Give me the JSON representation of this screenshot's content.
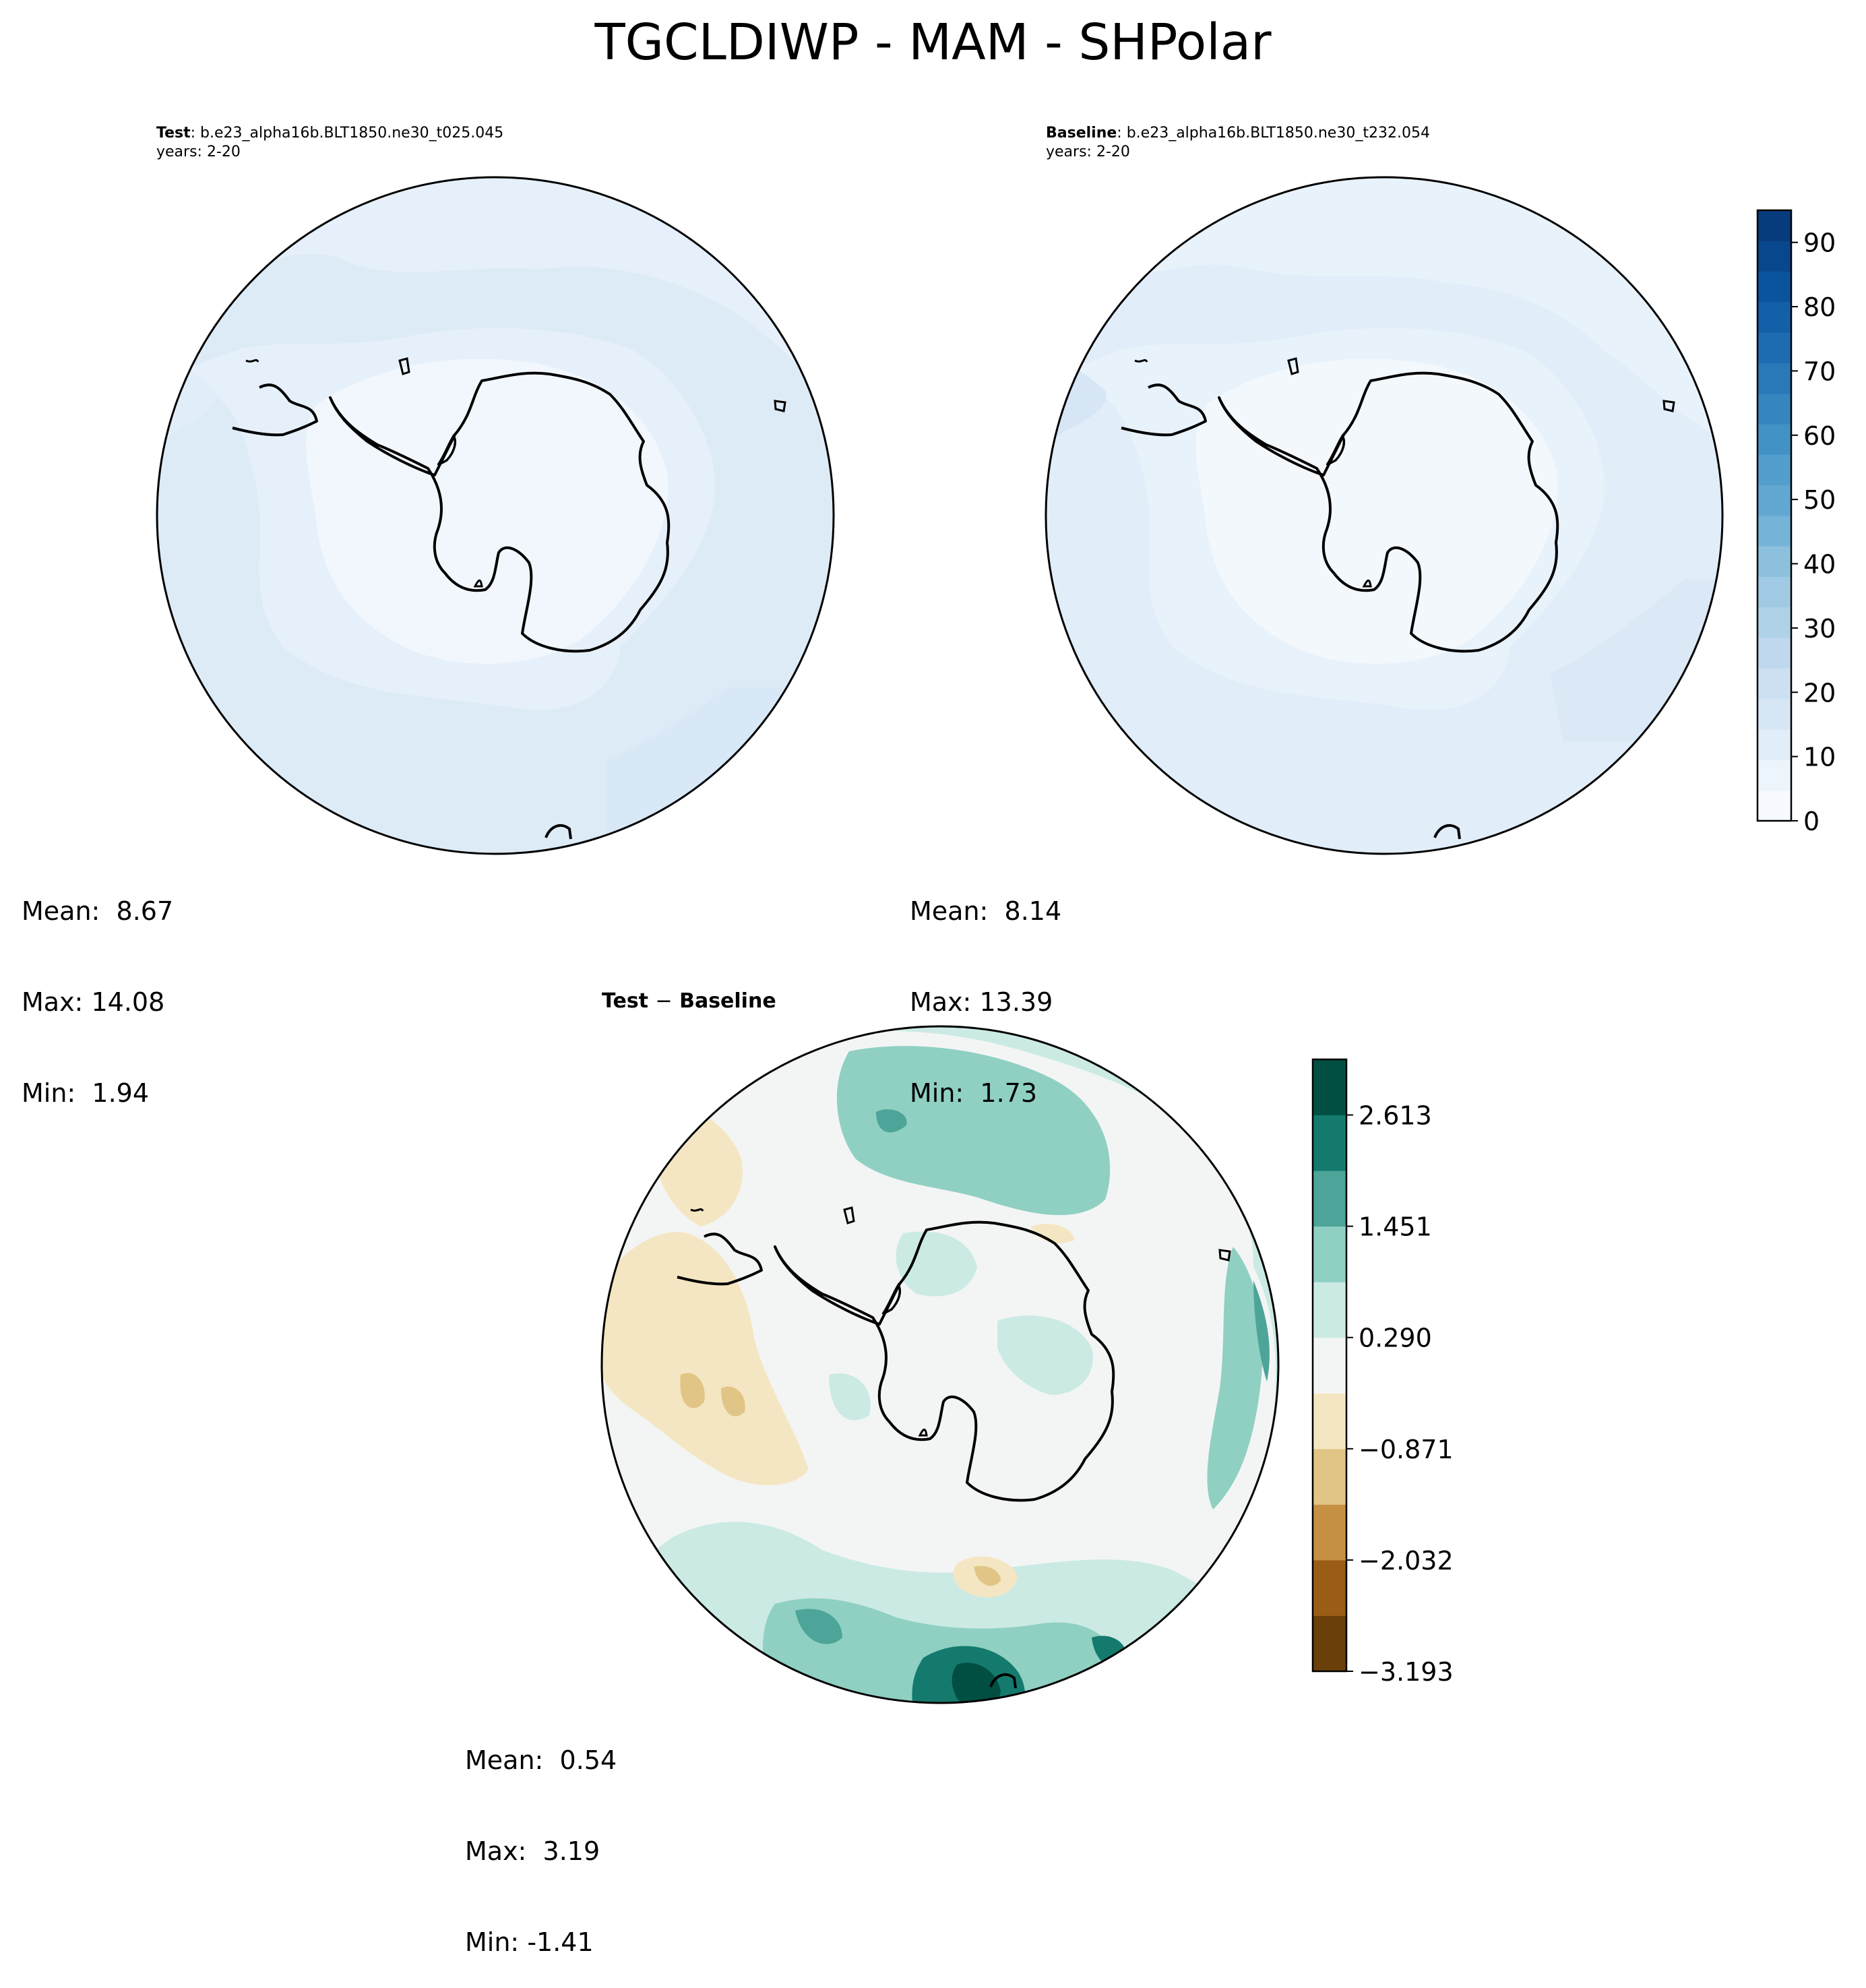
{
  "figure": {
    "title": "TGCLDIWP - MAM - SHPolar"
  },
  "panels": {
    "test": {
      "label": "Test",
      "case": ": b.e23_alpha16b.BLT1850.ne30_t025.045",
      "years": "years: 2-20",
      "stats": {
        "mean_label": "Mean:",
        "mean": "8.67",
        "max_label": "Max:",
        "max": "14.08",
        "min_label": "Min:",
        "min": "1.94"
      }
    },
    "baseline": {
      "label": "Baseline",
      "case": ": b.e23_alpha16b.BLT1850.ne30_t232.054",
      "years": "years: 2-20",
      "stats": {
        "mean_label": "Mean:",
        "mean": "8.14",
        "max_label": "Max:",
        "max": "13.39",
        "min_label": "Min:",
        "min": "1.73"
      }
    },
    "diff": {
      "title_left": "Test",
      "title_sep": "−",
      "title_right": "Baseline",
      "stats": {
        "mean_label": "Mean:",
        "mean": "0.54",
        "max_label": "Max:",
        "max": "3.19",
        "min_label": "Min:",
        "min": "-1.41"
      }
    }
  },
  "chart_data": [
    {
      "type": "heatmap",
      "projection": "south-polar-stereographic",
      "panel": "test",
      "colormap": "Blues",
      "colorbar": {
        "range": [
          0,
          95
        ],
        "levels_step": 5,
        "ticks": [
          0,
          10,
          20,
          30,
          40,
          50,
          60,
          70,
          80,
          90
        ]
      },
      "summary": {
        "mean": 8.67,
        "max": 14.08,
        "min": 1.94
      }
    },
    {
      "type": "heatmap",
      "projection": "south-polar-stereographic",
      "panel": "baseline",
      "colormap": "Blues",
      "colorbar": {
        "range": [
          0,
          95
        ],
        "levels_step": 5,
        "ticks": [
          0,
          10,
          20,
          30,
          40,
          50,
          60,
          70,
          80,
          90
        ]
      },
      "summary": {
        "mean": 8.14,
        "max": 13.39,
        "min": 1.73
      }
    },
    {
      "type": "heatmap",
      "projection": "south-polar-stereographic",
      "panel": "diff",
      "colormap": "BrBG",
      "colorbar": {
        "range": [
          -3.193,
          3.193
        ],
        "ticks": [
          "−3.193",
          "−2.032",
          "−0.871",
          "0.290",
          "1.451",
          "2.613"
        ],
        "colors": [
          "#6b3f0a",
          "#9b5c16",
          "#c69044",
          "#e0c586",
          "#f5e6c3",
          "#f3f5f4",
          "#cbeae4",
          "#8fd0c3",
          "#4ca598",
          "#157a6e",
          "#014f43"
        ]
      },
      "summary": {
        "mean": 0.54,
        "max": 3.19,
        "min": -1.41
      }
    }
  ],
  "colors": {
    "blues": [
      "#f6faff",
      "#ecf4fc",
      "#e1edf8",
      "#d7e6f5",
      "#cde0f2",
      "#bfd8ed",
      "#b0d2e8",
      "#a0cae3",
      "#8cc0dd",
      "#75b4d8",
      "#62a8d3",
      "#539ecd",
      "#4292c6",
      "#3585bf",
      "#2979b9",
      "#1d6cb1",
      "#1460a8",
      "#0a549e",
      "#08478d",
      "#083b7c"
    ]
  }
}
